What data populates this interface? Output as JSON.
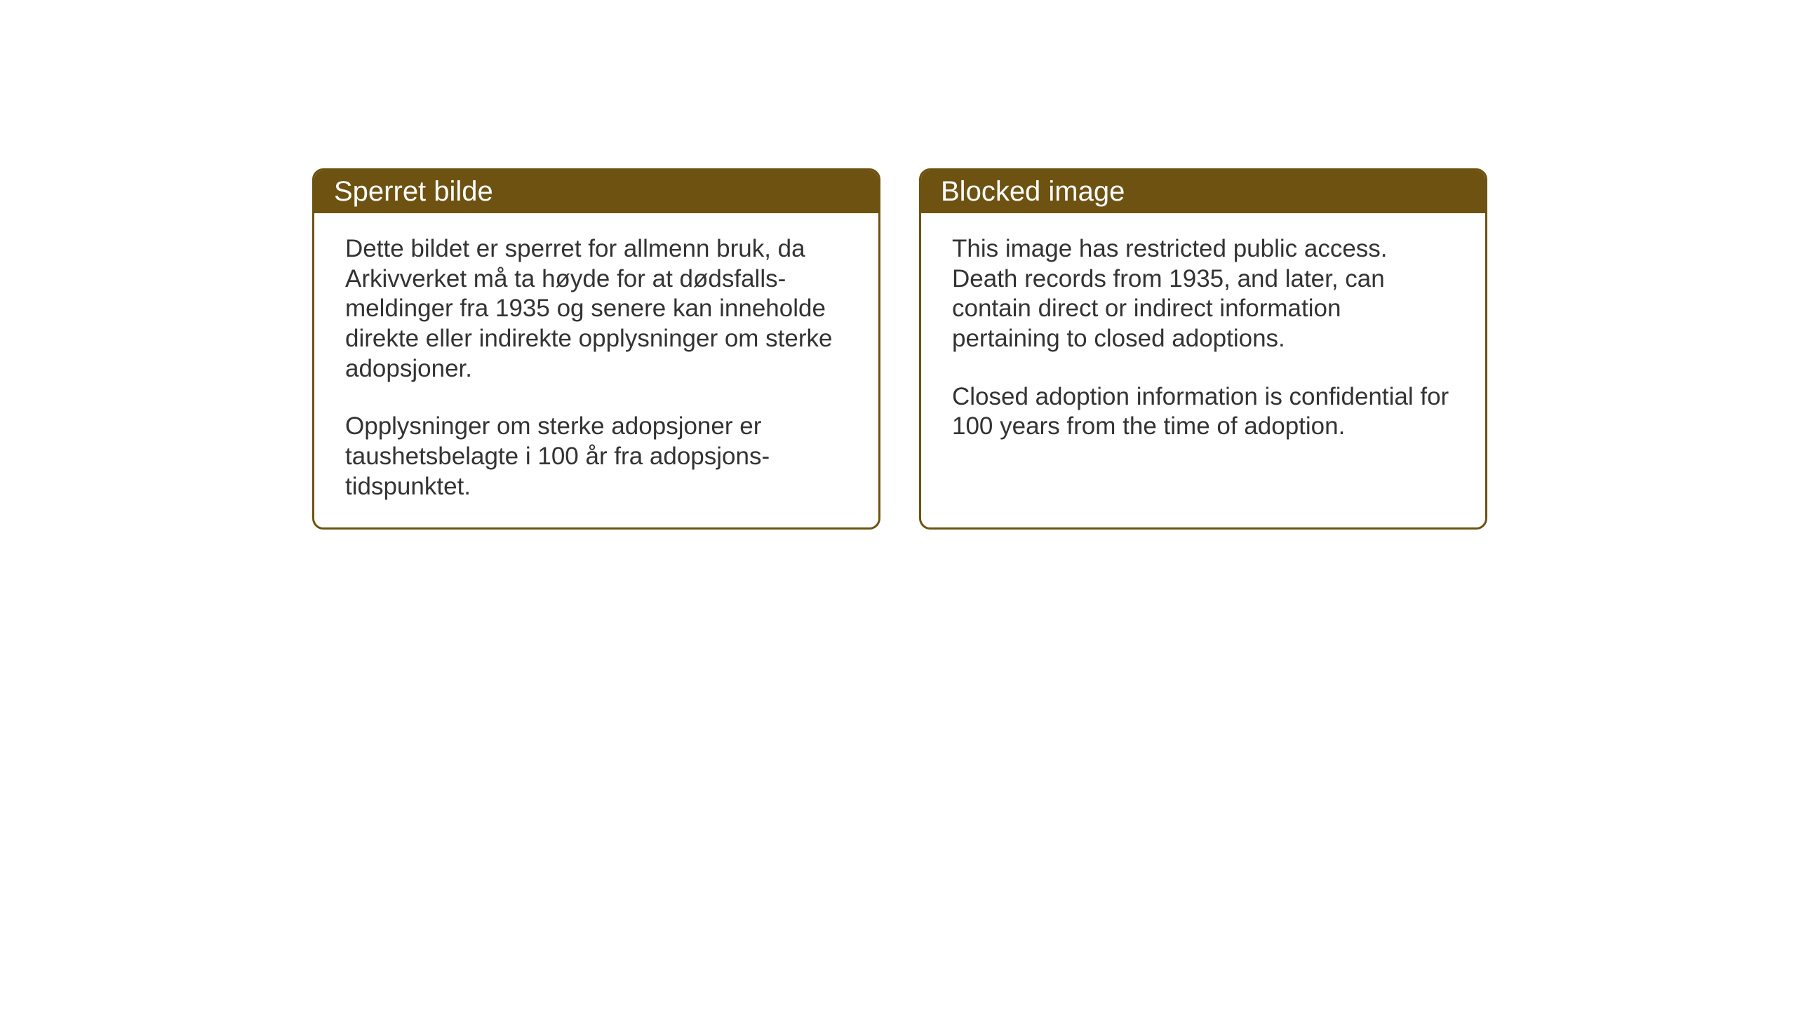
{
  "notices": {
    "norwegian": {
      "title": "Sperret bilde",
      "paragraph1": "Dette bildet er sperret for allmenn bruk,\nda Arkivverket må ta høyde for at dødsfalls-\nmeldinger fra 1935 og senere kan inneholde direkte eller indirekte opplysninger om sterke adopsjoner.",
      "paragraph2": "Opplysninger om sterke adopsjoner er taushetsbelagte i 100 år fra adopsjons-\ntidspunktet."
    },
    "english": {
      "title": "Blocked image",
      "paragraph1": "This image has restricted public access. Death records from 1935, and later, can contain direct or indirect information pertaining to closed adoptions.",
      "paragraph2": "Closed adoption information is confidential for 100 years from the time of adoption."
    }
  },
  "styling": {
    "header_background_color": "#6e5211",
    "header_text_color": "#ffffff",
    "border_color": "#6e5211",
    "body_text_color": "#333333",
    "background_color": "#ffffff",
    "border_radius": 16,
    "header_font_size": 40,
    "body_font_size": 35
  }
}
